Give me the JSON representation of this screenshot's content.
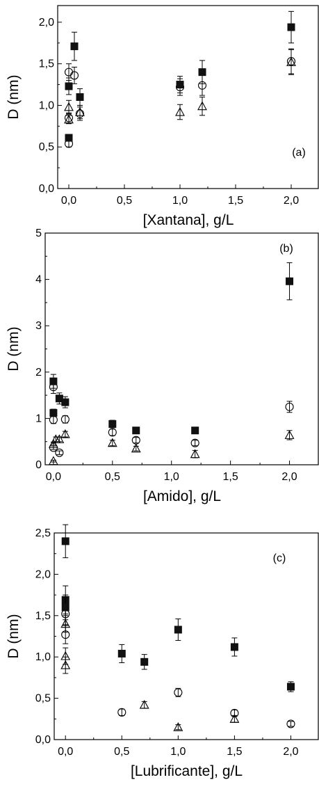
{
  "chart_data": [
    {
      "type": "scatter",
      "panel_label": "(a)",
      "xlabel": "[Xantana], g/L",
      "ylabel": "D (nm)",
      "xlim": [
        -0.1,
        2.25
      ],
      "ylim": [
        0.0,
        2.2
      ],
      "xticks": [
        0.0,
        0.5,
        1.0,
        1.5,
        2.0
      ],
      "xtick_labels": [
        "0,0",
        "0,5",
        "1,0",
        "1,5",
        "2,0"
      ],
      "yticks": [
        0.0,
        0.5,
        1.0,
        1.5,
        2.0
      ],
      "ytick_labels": [
        "0,0",
        "0,5",
        "1,0",
        "1,5",
        "2,0"
      ],
      "series": [
        {
          "marker": "filled-square",
          "points": [
            {
              "x": 0.0,
              "y": 0.61,
              "err": 0.04
            },
            {
              "x": 0.0,
              "y": 1.23,
              "err": 0.1
            },
            {
              "x": 0.05,
              "y": 1.71,
              "err": 0.17
            },
            {
              "x": 0.1,
              "y": 1.1,
              "err": 0.1
            },
            {
              "x": 1.0,
              "y": 1.25,
              "err": 0.1
            },
            {
              "x": 1.2,
              "y": 1.4,
              "err": 0.14
            },
            {
              "x": 2.0,
              "y": 1.94,
              "err": 0.19
            }
          ]
        },
        {
          "marker": "open-circle",
          "points": [
            {
              "x": 0.0,
              "y": 0.54,
              "err": 0.04
            },
            {
              "x": 0.0,
              "y": 0.85,
              "err": 0.06
            },
            {
              "x": 0.0,
              "y": 1.4,
              "err": 0.1
            },
            {
              "x": 0.05,
              "y": 1.36,
              "err": 0.1
            },
            {
              "x": 0.1,
              "y": 0.9,
              "err": 0.08
            },
            {
              "x": 1.0,
              "y": 1.22,
              "err": 0.1
            },
            {
              "x": 1.2,
              "y": 1.24,
              "err": 0.12
            },
            {
              "x": 2.0,
              "y": 1.53,
              "err": 0.15
            }
          ]
        },
        {
          "marker": "open-triangle",
          "points": [
            {
              "x": 0.0,
              "y": 0.83,
              "err": 0.05
            },
            {
              "x": 0.0,
              "y": 0.98,
              "err": 0.08
            },
            {
              "x": 0.1,
              "y": 0.92,
              "err": 0.08
            },
            {
              "x": 1.0,
              "y": 0.92,
              "err": 0.09
            },
            {
              "x": 1.2,
              "y": 0.99,
              "err": 0.11
            },
            {
              "x": 2.0,
              "y": 1.52,
              "err": 0.15
            }
          ]
        }
      ]
    },
    {
      "type": "scatter",
      "panel_label": "(b)",
      "xlabel": "[Amido], g/L",
      "ylabel": "D (nm)",
      "xlim": [
        -0.07,
        2.25
      ],
      "ylim": [
        0,
        5
      ],
      "xticks": [
        0.0,
        0.5,
        1.0,
        1.5,
        2.0
      ],
      "xtick_labels": [
        "0,0",
        "0,5",
        "1,0",
        "1,5",
        "2,0"
      ],
      "yticks": [
        0,
        1,
        2,
        3,
        4,
        5
      ],
      "ytick_labels": [
        "0",
        "1",
        "2",
        "3",
        "4",
        "5"
      ],
      "series": [
        {
          "marker": "filled-square",
          "points": [
            {
              "x": 0.0,
              "y": 1.8,
              "err": 0.15
            },
            {
              "x": 0.0,
              "y": 1.12,
              "err": 0.08
            },
            {
              "x": 0.05,
              "y": 1.43,
              "err": 0.12
            },
            {
              "x": 0.1,
              "y": 1.35,
              "err": 0.12
            },
            {
              "x": 0.5,
              "y": 0.88,
              "err": 0.08
            },
            {
              "x": 0.7,
              "y": 0.74,
              "err": 0.07
            },
            {
              "x": 1.2,
              "y": 0.74,
              "err": 0.07
            },
            {
              "x": 2.0,
              "y": 3.96,
              "err": 0.4
            }
          ]
        },
        {
          "marker": "open-circle",
          "points": [
            {
              "x": 0.0,
              "y": 1.68,
              "err": 0.14
            },
            {
              "x": 0.0,
              "y": 0.97,
              "err": 0.08
            },
            {
              "x": 0.0,
              "y": 0.37,
              "err": 0.04
            },
            {
              "x": 0.05,
              "y": 0.26,
              "err": 0.04
            },
            {
              "x": 0.1,
              "y": 0.98,
              "err": 0.08
            },
            {
              "x": 0.5,
              "y": 0.7,
              "err": 0.07
            },
            {
              "x": 0.7,
              "y": 0.53,
              "err": 0.06
            },
            {
              "x": 1.2,
              "y": 0.47,
              "err": 0.06
            },
            {
              "x": 2.0,
              "y": 1.25,
              "err": 0.12
            }
          ]
        },
        {
          "marker": "open-triangle",
          "points": [
            {
              "x": 0.0,
              "y": 0.08,
              "err": 0.02
            },
            {
              "x": 0.0,
              "y": 0.45,
              "err": 0.04
            },
            {
              "x": 0.02,
              "y": 0.55,
              "err": 0.05
            },
            {
              "x": 0.05,
              "y": 0.55,
              "err": 0.05
            },
            {
              "x": 0.1,
              "y": 0.66,
              "err": 0.06
            },
            {
              "x": 0.5,
              "y": 0.47,
              "err": 0.06
            },
            {
              "x": 0.7,
              "y": 0.35,
              "err": 0.05
            },
            {
              "x": 1.2,
              "y": 0.23,
              "err": 0.08
            },
            {
              "x": 2.0,
              "y": 0.64,
              "err": 0.1
            }
          ]
        }
      ]
    },
    {
      "type": "scatter",
      "panel_label": "(c)",
      "xlabel": "[Lubrificante], g/L",
      "ylabel": "D (nm)",
      "xlim": [
        -0.1,
        2.25
      ],
      "ylim": [
        0.0,
        2.5
      ],
      "xticks": [
        0.0,
        0.5,
        1.0,
        1.5,
        2.0
      ],
      "xtick_labels": [
        "0,0",
        "0,5",
        "1,0",
        "1,5",
        "2,0"
      ],
      "yticks": [
        0.0,
        0.5,
        1.0,
        1.5,
        2.0,
        2.5
      ],
      "ytick_labels": [
        "0,0",
        "0,5",
        "1,0",
        "1,5",
        "2,0",
        "2,5"
      ],
      "series": [
        {
          "marker": "filled-square",
          "points": [
            {
              "x": 0.0,
              "y": 2.4,
              "err": 0.2
            },
            {
              "x": 0.0,
              "y": 1.69,
              "err": 0.17
            },
            {
              "x": 0.0,
              "y": 1.6,
              "err": 0.15
            },
            {
              "x": 0.5,
              "y": 1.04,
              "err": 0.11
            },
            {
              "x": 0.7,
              "y": 0.94,
              "err": 0.09
            },
            {
              "x": 1.0,
              "y": 1.33,
              "err": 0.13
            },
            {
              "x": 1.5,
              "y": 1.12,
              "err": 0.11
            },
            {
              "x": 2.0,
              "y": 0.64,
              "err": 0.06
            }
          ]
        },
        {
          "marker": "open-circle",
          "points": [
            {
              "x": 0.0,
              "y": 1.52,
              "err": 0.13
            },
            {
              "x": 0.0,
              "y": 1.27,
              "err": 0.11
            },
            {
              "x": 0.5,
              "y": 0.33,
              "err": 0.04
            },
            {
              "x": 1.0,
              "y": 0.57,
              "err": 0.05
            },
            {
              "x": 1.5,
              "y": 0.32,
              "err": 0.04
            },
            {
              "x": 2.0,
              "y": 0.19,
              "err": 0.03
            }
          ]
        },
        {
          "marker": "open-triangle",
          "points": [
            {
              "x": 0.0,
              "y": 1.4,
              "err": 0.1
            },
            {
              "x": 0.0,
              "y": 1.01,
              "err": 0.1
            },
            {
              "x": 0.0,
              "y": 0.9,
              "err": 0.1
            },
            {
              "x": 0.7,
              "y": 0.42,
              "err": 0.04
            },
            {
              "x": 1.0,
              "y": 0.15,
              "err": 0.03
            },
            {
              "x": 1.5,
              "y": 0.25,
              "err": 0.04
            }
          ]
        }
      ]
    }
  ]
}
